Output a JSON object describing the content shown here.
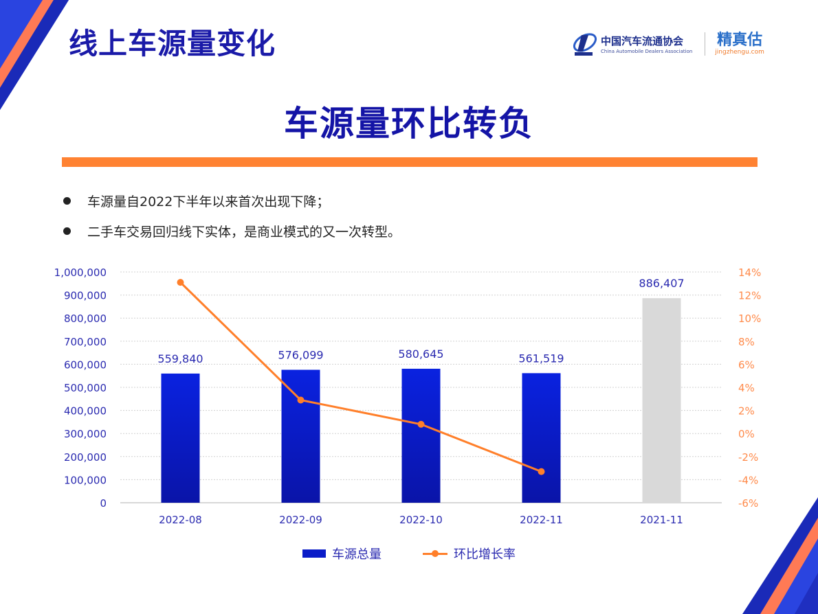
{
  "header": {
    "title": "线上车源量变化",
    "logo_cada_cn": "中国汽车流通协会",
    "logo_cada_en": "China Automobile Dealers Association",
    "logo_jzg_cn": "精真估",
    "logo_jzg_en": "jingzhengu.com"
  },
  "headline": "车源量环比转负",
  "bullets": [
    "车源量自2022下半年以来首次出现下降；",
    "二手车交易回归线下实体，是商业模式的又一次转型。"
  ],
  "legend": {
    "bar_label": "车源总量",
    "line_label": "环比增长率"
  },
  "colors": {
    "bar": "#0a1cc8",
    "bar_compare": "#d9d9d9",
    "line": "#ff7f2a",
    "title": "#1a1aa8",
    "accent": "#ff8232"
  },
  "chart_data": {
    "type": "bar",
    "title": "车源量环比转负",
    "categories": [
      "2022-08",
      "2022-09",
      "2022-10",
      "2022-11",
      "2021-11"
    ],
    "series": [
      {
        "name": "车源总量",
        "type": "bar",
        "axis": "left",
        "values": [
          559840,
          576099,
          580645,
          561519,
          886407
        ],
        "labels": [
          "559,840",
          "576,099",
          "580,645",
          "561,519",
          "886,407"
        ]
      },
      {
        "name": "环比增长率",
        "type": "line",
        "axis": "right",
        "values": [
          13.1,
          2.9,
          0.8,
          -3.3,
          null
        ],
        "unit": "%"
      }
    ],
    "ylim": [
      0,
      1000000
    ],
    "yticks": [
      "0",
      "100,000",
      "200,000",
      "300,000",
      "400,000",
      "500,000",
      "600,000",
      "700,000",
      "800,000",
      "900,000",
      "1,000,000"
    ],
    "y2lim": [
      -6,
      14
    ],
    "y2ticks": [
      "-6%",
      "-4%",
      "-2%",
      "0%",
      "2%",
      "4%",
      "6%",
      "8%",
      "10%",
      "12%",
      "14%"
    ],
    "xlabel": "",
    "ylabel": "",
    "grid": true,
    "legend_position": "bottom"
  }
}
